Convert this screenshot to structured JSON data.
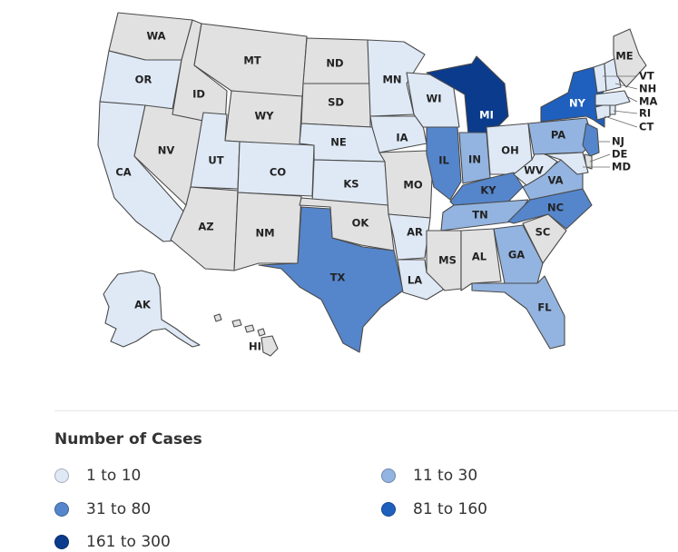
{
  "legend": {
    "title": "Number of Cases",
    "bins": [
      {
        "label": "1 to 10",
        "color": "#dfe9f6"
      },
      {
        "label": "11 to 30",
        "color": "#93b4e0"
      },
      {
        "label": "31 to 80",
        "color": "#5586cc"
      },
      {
        "label": "81 to 160",
        "color": "#1f5fbe"
      },
      {
        "label": "161 to 300",
        "color": "#0b3b8c"
      }
    ]
  },
  "no_data_color": "#e1e1e1",
  "states": [
    {
      "abbr": "WA",
      "bin": null
    },
    {
      "abbr": "OR",
      "bin": 0
    },
    {
      "abbr": "CA",
      "bin": 0
    },
    {
      "abbr": "NV",
      "bin": null
    },
    {
      "abbr": "ID",
      "bin": null
    },
    {
      "abbr": "MT",
      "bin": null
    },
    {
      "abbr": "WY",
      "bin": null
    },
    {
      "abbr": "UT",
      "bin": 0
    },
    {
      "abbr": "AZ",
      "bin": null
    },
    {
      "abbr": "CO",
      "bin": 0
    },
    {
      "abbr": "NM",
      "bin": null
    },
    {
      "abbr": "ND",
      "bin": null
    },
    {
      "abbr": "SD",
      "bin": null
    },
    {
      "abbr": "NE",
      "bin": 0
    },
    {
      "abbr": "KS",
      "bin": 0
    },
    {
      "abbr": "OK",
      "bin": null
    },
    {
      "abbr": "TX",
      "bin": 2
    },
    {
      "abbr": "MN",
      "bin": 0
    },
    {
      "abbr": "IA",
      "bin": 0
    },
    {
      "abbr": "MO",
      "bin": null
    },
    {
      "abbr": "AR",
      "bin": 0
    },
    {
      "abbr": "LA",
      "bin": 0
    },
    {
      "abbr": "WI",
      "bin": 0
    },
    {
      "abbr": "IL",
      "bin": 2
    },
    {
      "abbr": "MI",
      "bin": 4
    },
    {
      "abbr": "IN",
      "bin": 1
    },
    {
      "abbr": "OH",
      "bin": 0
    },
    {
      "abbr": "KY",
      "bin": 2
    },
    {
      "abbr": "TN",
      "bin": 1
    },
    {
      "abbr": "MS",
      "bin": null
    },
    {
      "abbr": "AL",
      "bin": null
    },
    {
      "abbr": "GA",
      "bin": 1
    },
    {
      "abbr": "FL",
      "bin": 1
    },
    {
      "abbr": "SC",
      "bin": null
    },
    {
      "abbr": "NC",
      "bin": 2
    },
    {
      "abbr": "VA",
      "bin": 1
    },
    {
      "abbr": "WV",
      "bin": 0
    },
    {
      "abbr": "PA",
      "bin": 1
    },
    {
      "abbr": "NY",
      "bin": 3
    },
    {
      "abbr": "ME",
      "bin": null
    },
    {
      "abbr": "VT",
      "bin": 0
    },
    {
      "abbr": "NH",
      "bin": 0
    },
    {
      "abbr": "MA",
      "bin": 0
    },
    {
      "abbr": "RI",
      "bin": 0
    },
    {
      "abbr": "CT",
      "bin": 0
    },
    {
      "abbr": "NJ",
      "bin": 2
    },
    {
      "abbr": "DE",
      "bin": null
    },
    {
      "abbr": "MD",
      "bin": 0
    },
    {
      "abbr": "AK",
      "bin": 0
    },
    {
      "abbr": "HI",
      "bin": null
    }
  ]
}
